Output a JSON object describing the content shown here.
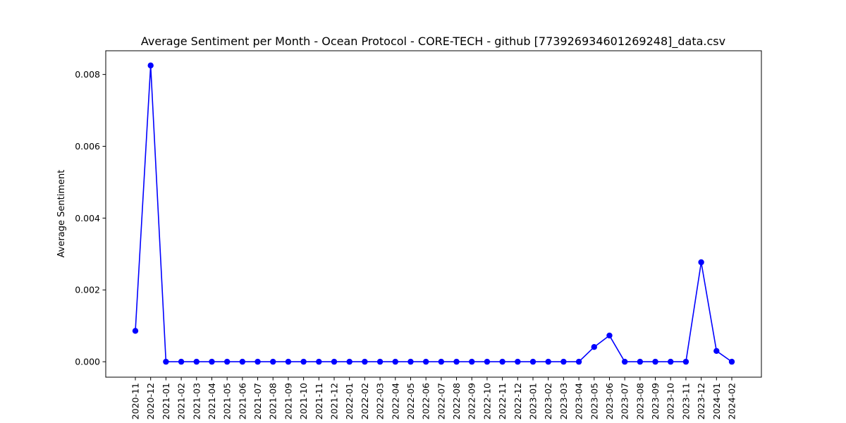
{
  "chart_data": {
    "type": "line",
    "title": "Average Sentiment per Month - Ocean Protocol - CORE-TECH - github [773926934601269248]_data.csv",
    "xlabel": "",
    "ylabel": "Average Sentiment",
    "ylim": [
      -0.00043,
      0.00866
    ],
    "yticks": [
      "0.000",
      "0.002",
      "0.004",
      "0.006",
      "0.008"
    ],
    "grid": false,
    "line_color": "#0000ff",
    "categories": [
      "2020-11",
      "2020-12",
      "2021-01",
      "2021-02",
      "2021-03",
      "2021-04",
      "2021-05",
      "2021-06",
      "2021-07",
      "2021-08",
      "2021-09",
      "2021-10",
      "2021-11",
      "2021-12",
      "2022-01",
      "2022-02",
      "2022-03",
      "2022-04",
      "2022-05",
      "2022-06",
      "2022-07",
      "2022-08",
      "2022-09",
      "2022-10",
      "2022-11",
      "2022-12",
      "2023-01",
      "2023-02",
      "2023-03",
      "2023-04",
      "2023-05",
      "2023-06",
      "2023-07",
      "2023-08",
      "2023-09",
      "2023-10",
      "2023-11",
      "2023-12",
      "2024-01",
      "2024-02"
    ],
    "values": [
      0.00086,
      0.00825,
      0,
      0,
      0,
      0,
      0,
      0,
      0,
      0,
      0,
      0,
      0,
      0,
      0,
      0,
      0,
      0,
      0,
      0,
      0,
      0,
      0,
      0,
      0,
      0,
      0,
      0,
      0,
      0,
      0.00041,
      0.00073,
      0,
      0,
      0,
      0,
      0,
      0.00277,
      0.0003,
      0
    ]
  }
}
